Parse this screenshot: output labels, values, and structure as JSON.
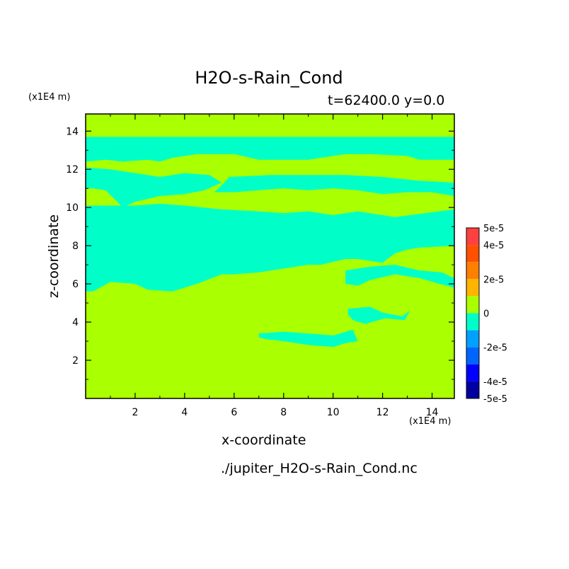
{
  "chart_data": {
    "type": "heatmap",
    "title": "H2O-s-Rain_Cond",
    "subtitle": "t=62400.0 y=0.0",
    "xlabel": "x-coordinate",
    "ylabel": "z-coordinate",
    "x_unit": "(x1E4 m)",
    "y_unit": "(x1E4 m)",
    "file_label": "./jupiter_H2O-s-Rain_Cond.nc",
    "xlim": [
      0,
      14.9
    ],
    "ylim": [
      0,
      14.9
    ],
    "x_ticks": [
      2,
      4,
      6,
      8,
      10,
      12,
      14
    ],
    "y_ticks": [
      2,
      4,
      6,
      8,
      10,
      12,
      14
    ],
    "colorbar": {
      "range": [
        -5e-05,
        5e-05
      ],
      "labels": [
        {
          "text": "5e-5",
          "value": 5e-05
        },
        {
          "text": "4e-5",
          "value": 4e-05
        },
        {
          "text": "2e-5",
          "value": 2e-05
        },
        {
          "text": "0",
          "value": 0
        },
        {
          "text": "-2e-5",
          "value": -2e-05
        },
        {
          "text": "-4e-5",
          "value": -4e-05
        },
        {
          "text": "-5e-5",
          "value": -5e-05
        }
      ],
      "bins": [
        {
          "from": 4e-05,
          "to": 5e-05,
          "color": "#ff4040"
        },
        {
          "from": 3e-05,
          "to": 4e-05,
          "color": "#ff5000"
        },
        {
          "from": 2e-05,
          "to": 3e-05,
          "color": "#ff7f00"
        },
        {
          "from": 1e-05,
          "to": 2e-05,
          "color": "#ffb400"
        },
        {
          "from": 0,
          "to": 1e-05,
          "color": "#aaff00"
        },
        {
          "from": -1e-05,
          "to": 0,
          "color": "#00ffc8"
        },
        {
          "from": -2e-05,
          "to": -1e-05,
          "color": "#00a0ff"
        },
        {
          "from": -3e-05,
          "to": -2e-05,
          "color": "#0064ff"
        },
        {
          "from": -4e-05,
          "to": -3e-05,
          "color": "#0000ff"
        },
        {
          "from": -5e-05,
          "to": -4e-05,
          "color": "#0000a0"
        }
      ]
    },
    "background_value_color": "#aaff00",
    "negative_regions_color": "#00ffc8",
    "negative_regions": [
      [
        [
          0,
          13.7
        ],
        [
          14.9,
          13.7
        ],
        [
          14.9,
          12.5
        ],
        [
          13.5,
          12.5
        ],
        [
          13,
          12.7
        ],
        [
          11.5,
          12.8
        ],
        [
          10.5,
          12.8
        ],
        [
          9,
          12.5
        ],
        [
          7,
          12.5
        ],
        [
          6,
          12.8
        ],
        [
          4.5,
          12.8
        ],
        [
          3.5,
          12.6
        ],
        [
          3,
          12.4
        ],
        [
          2.5,
          12.5
        ],
        [
          1.5,
          12.4
        ],
        [
          0.8,
          12.5
        ],
        [
          0,
          12.4
        ]
      ],
      [
        [
          0,
          12.1
        ],
        [
          1,
          12
        ],
        [
          2,
          11.8
        ],
        [
          3,
          11.6
        ],
        [
          4,
          11.8
        ],
        [
          5,
          11.7
        ],
        [
          5.5,
          11.3
        ],
        [
          4.8,
          10.9
        ],
        [
          4,
          10.7
        ],
        [
          3,
          10.6
        ],
        [
          2,
          10.3
        ],
        [
          1.5,
          10
        ],
        [
          1.2,
          10.4
        ],
        [
          0.8,
          10.9
        ],
        [
          0.3,
          11
        ],
        [
          0,
          11
        ]
      ],
      [
        [
          5.8,
          11.6
        ],
        [
          7.5,
          11.7
        ],
        [
          9,
          11.7
        ],
        [
          10.5,
          11.7
        ],
        [
          12,
          11.6
        ],
        [
          13.5,
          11.4
        ],
        [
          14.9,
          11.3
        ],
        [
          14.9,
          10.6
        ],
        [
          14,
          10.8
        ],
        [
          13,
          10.8
        ],
        [
          12,
          10.7
        ],
        [
          11,
          10.9
        ],
        [
          10,
          11
        ],
        [
          9,
          10.9
        ],
        [
          8,
          11
        ],
        [
          7,
          10.9
        ],
        [
          6,
          10.8
        ],
        [
          5.2,
          10.8
        ],
        [
          5.6,
          11.3
        ]
      ],
      [
        [
          0,
          10.1
        ],
        [
          2,
          10.1
        ],
        [
          3,
          10.2
        ],
        [
          4,
          10.1
        ],
        [
          5.5,
          9.9
        ],
        [
          7,
          9.8
        ],
        [
          8,
          9.7
        ],
        [
          9,
          9.8
        ],
        [
          10,
          9.6
        ],
        [
          11,
          9.8
        ],
        [
          12.5,
          9.5
        ],
        [
          14.9,
          9.9
        ],
        [
          14.9,
          8
        ],
        [
          13.5,
          7.9
        ],
        [
          13,
          7.8
        ],
        [
          12.5,
          7.6
        ],
        [
          12,
          7.1
        ],
        [
          11,
          7.3
        ],
        [
          10.5,
          7.3
        ],
        [
          9.5,
          7
        ],
        [
          9,
          7
        ],
        [
          8,
          6.8
        ],
        [
          7,
          6.6
        ],
        [
          6,
          6.5
        ],
        [
          5.5,
          6.5
        ],
        [
          4.5,
          6
        ],
        [
          3.5,
          5.6
        ],
        [
          2.5,
          5.7
        ],
        [
          2,
          6
        ],
        [
          1,
          6.1
        ],
        [
          0.3,
          5.6
        ],
        [
          0,
          5.6
        ]
      ],
      [
        [
          10.5,
          6.7
        ],
        [
          11.5,
          6.9
        ],
        [
          12.5,
          7.0
        ],
        [
          13.5,
          6.7
        ],
        [
          14.4,
          6.6
        ],
        [
          14.9,
          6.3
        ],
        [
          14.9,
          5.8
        ],
        [
          14.3,
          6
        ],
        [
          13.5,
          6.3
        ],
        [
          12.5,
          6.5
        ],
        [
          11.5,
          6.2
        ],
        [
          11,
          5.9
        ],
        [
          10.5,
          6.0
        ]
      ],
      [
        [
          10.6,
          4.7
        ],
        [
          11.5,
          4.8
        ],
        [
          12,
          4.5
        ],
        [
          12.8,
          4.3
        ],
        [
          13.1,
          4.6
        ],
        [
          12.9,
          4.1
        ],
        [
          12.1,
          4.2
        ],
        [
          11.3,
          3.9
        ],
        [
          10.8,
          4.1
        ],
        [
          10.6,
          4.4
        ]
      ],
      [
        [
          7,
          3.4
        ],
        [
          8,
          3.5
        ],
        [
          9,
          3.4
        ],
        [
          10,
          3.3
        ],
        [
          10.8,
          3.6
        ],
        [
          11,
          3.0
        ],
        [
          10.5,
          2.9
        ],
        [
          10,
          2.7
        ],
        [
          9,
          2.8
        ],
        [
          8,
          3.0
        ],
        [
          7.3,
          3.1
        ],
        [
          7,
          3.2
        ]
      ]
    ]
  }
}
